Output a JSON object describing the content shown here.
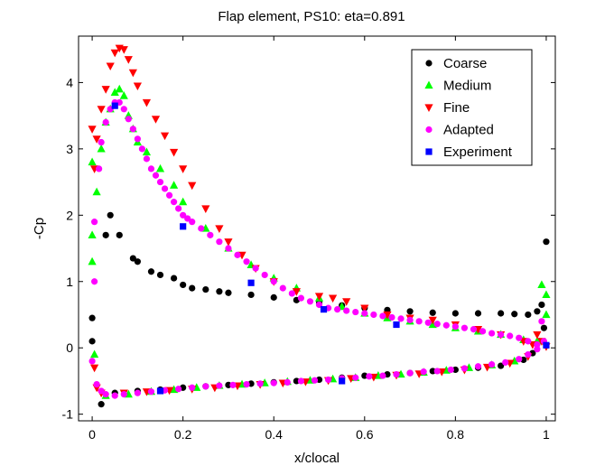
{
  "chart_data": {
    "type": "scatter",
    "title": "Flap element, PS10: eta=0.891",
    "xlabel": "x/clocal",
    "ylabel": "-Cp",
    "xlim": [
      -0.03,
      1.02
    ],
    "ylim": [
      -1.1,
      4.7
    ],
    "xticks": [
      0,
      0.2,
      0.4,
      0.6,
      0.8,
      1
    ],
    "yticks": [
      -1,
      0,
      1,
      2,
      3,
      4
    ],
    "grid": false,
    "legend_position": "top-right",
    "series": [
      {
        "name": "Coarse",
        "marker": "circle",
        "color": "#000000",
        "points": [
          [
            0.0,
            0.45
          ],
          [
            0.0,
            0.1
          ],
          [
            0.02,
            -0.85
          ],
          [
            0.03,
            1.7
          ],
          [
            0.04,
            2.0
          ],
          [
            0.06,
            1.7
          ],
          [
            0.09,
            1.35
          ],
          [
            0.1,
            1.3
          ],
          [
            0.13,
            1.15
          ],
          [
            0.15,
            1.1
          ],
          [
            0.18,
            1.05
          ],
          [
            0.2,
            0.95
          ],
          [
            0.22,
            0.9
          ],
          [
            0.25,
            0.88
          ],
          [
            0.28,
            0.85
          ],
          [
            0.3,
            0.83
          ],
          [
            0.35,
            0.8
          ],
          [
            0.4,
            0.76
          ],
          [
            0.45,
            0.72
          ],
          [
            0.5,
            0.68
          ],
          [
            0.55,
            0.64
          ],
          [
            0.6,
            0.6
          ],
          [
            0.65,
            0.57
          ],
          [
            0.7,
            0.55
          ],
          [
            0.75,
            0.53
          ],
          [
            0.8,
            0.52
          ],
          [
            0.85,
            0.52
          ],
          [
            0.9,
            0.52
          ],
          [
            0.93,
            0.51
          ],
          [
            0.96,
            0.5
          ],
          [
            0.98,
            0.55
          ],
          [
            0.99,
            0.65
          ],
          [
            1.0,
            1.6
          ],
          [
            0.995,
            0.3
          ],
          [
            0.985,
            0.1
          ],
          [
            0.05,
            -0.68
          ],
          [
            0.1,
            -0.65
          ],
          [
            0.15,
            -0.63
          ],
          [
            0.2,
            -0.6
          ],
          [
            0.25,
            -0.58
          ],
          [
            0.3,
            -0.56
          ],
          [
            0.35,
            -0.54
          ],
          [
            0.4,
            -0.52
          ],
          [
            0.45,
            -0.5
          ],
          [
            0.5,
            -0.48
          ],
          [
            0.55,
            -0.45
          ],
          [
            0.6,
            -0.42
          ],
          [
            0.65,
            -0.4
          ],
          [
            0.7,
            -0.38
          ],
          [
            0.75,
            -0.35
          ],
          [
            0.8,
            -0.33
          ],
          [
            0.85,
            -0.3
          ],
          [
            0.9,
            -0.27
          ],
          [
            0.95,
            -0.18
          ],
          [
            0.97,
            -0.08
          ]
        ]
      },
      {
        "name": "Medium",
        "marker": "triangle-up",
        "color": "#00ff00",
        "points": [
          [
            0.0,
            1.3
          ],
          [
            0.0,
            1.7
          ],
          [
            0.0,
            2.8
          ],
          [
            0.005,
            -0.1
          ],
          [
            0.01,
            2.35
          ],
          [
            0.02,
            3.0
          ],
          [
            0.03,
            3.4
          ],
          [
            0.04,
            3.6
          ],
          [
            0.05,
            3.85
          ],
          [
            0.06,
            3.9
          ],
          [
            0.07,
            3.8
          ],
          [
            0.08,
            3.5
          ],
          [
            0.09,
            3.3
          ],
          [
            0.1,
            3.1
          ],
          [
            0.12,
            2.95
          ],
          [
            0.15,
            2.7
          ],
          [
            0.18,
            2.45
          ],
          [
            0.2,
            2.2
          ],
          [
            0.25,
            1.8
          ],
          [
            0.3,
            1.5
          ],
          [
            0.35,
            1.25
          ],
          [
            0.4,
            1.05
          ],
          [
            0.45,
            0.9
          ],
          [
            0.5,
            0.75
          ],
          [
            0.55,
            0.62
          ],
          [
            0.6,
            0.52
          ],
          [
            0.65,
            0.45
          ],
          [
            0.7,
            0.4
          ],
          [
            0.75,
            0.35
          ],
          [
            0.8,
            0.3
          ],
          [
            0.85,
            0.25
          ],
          [
            0.9,
            0.2
          ],
          [
            0.95,
            0.12
          ],
          [
            0.98,
            0.1
          ],
          [
            0.99,
            0.95
          ],
          [
            1.0,
            0.8
          ],
          [
            1.0,
            0.5
          ],
          [
            0.03,
            -0.72
          ],
          [
            0.08,
            -0.7
          ],
          [
            0.13,
            -0.66
          ],
          [
            0.18,
            -0.63
          ],
          [
            0.23,
            -0.6
          ],
          [
            0.28,
            -0.57
          ],
          [
            0.33,
            -0.55
          ],
          [
            0.38,
            -0.53
          ],
          [
            0.43,
            -0.51
          ],
          [
            0.48,
            -0.49
          ],
          [
            0.53,
            -0.47
          ],
          [
            0.58,
            -0.45
          ],
          [
            0.63,
            -0.42
          ],
          [
            0.68,
            -0.4
          ],
          [
            0.73,
            -0.37
          ],
          [
            0.78,
            -0.34
          ],
          [
            0.83,
            -0.3
          ],
          [
            0.88,
            -0.26
          ],
          [
            0.93,
            -0.2
          ]
        ]
      },
      {
        "name": "Fine",
        "marker": "triangle-down",
        "color": "#ff0000",
        "points": [
          [
            0.0,
            3.3
          ],
          [
            0.005,
            2.7
          ],
          [
            0.005,
            -0.3
          ],
          [
            0.01,
            -0.6
          ],
          [
            0.01,
            3.15
          ],
          [
            0.02,
            3.6
          ],
          [
            0.03,
            3.9
          ],
          [
            0.04,
            4.25
          ],
          [
            0.05,
            4.45
          ],
          [
            0.06,
            4.52
          ],
          [
            0.07,
            4.5
          ],
          [
            0.08,
            4.35
          ],
          [
            0.09,
            4.15
          ],
          [
            0.1,
            3.95
          ],
          [
            0.12,
            3.7
          ],
          [
            0.14,
            3.45
          ],
          [
            0.16,
            3.2
          ],
          [
            0.18,
            2.95
          ],
          [
            0.2,
            2.7
          ],
          [
            0.22,
            2.45
          ],
          [
            0.25,
            2.1
          ],
          [
            0.28,
            1.8
          ],
          [
            0.3,
            1.6
          ],
          [
            0.33,
            1.4
          ],
          [
            0.36,
            1.2
          ],
          [
            0.4,
            1.0
          ],
          [
            0.45,
            0.85
          ],
          [
            0.5,
            0.78
          ],
          [
            0.53,
            0.75
          ],
          [
            0.56,
            0.7
          ],
          [
            0.6,
            0.6
          ],
          [
            0.65,
            0.5
          ],
          [
            0.7,
            0.45
          ],
          [
            0.75,
            0.42
          ],
          [
            0.8,
            0.35
          ],
          [
            0.85,
            0.28
          ],
          [
            0.9,
            0.2
          ],
          [
            0.95,
            0.1
          ],
          [
            0.97,
            0.05
          ],
          [
            0.98,
            0.2
          ],
          [
            0.99,
            0.1
          ],
          [
            1.0,
            0.02
          ],
          [
            0.02,
            -0.68
          ],
          [
            0.07,
            -0.68
          ],
          [
            0.12,
            -0.66
          ],
          [
            0.17,
            -0.64
          ],
          [
            0.22,
            -0.62
          ],
          [
            0.27,
            -0.6
          ],
          [
            0.32,
            -0.57
          ],
          [
            0.37,
            -0.55
          ],
          [
            0.42,
            -0.53
          ],
          [
            0.47,
            -0.51
          ],
          [
            0.52,
            -0.49
          ],
          [
            0.57,
            -0.46
          ],
          [
            0.62,
            -0.44
          ],
          [
            0.67,
            -0.41
          ],
          [
            0.72,
            -0.39
          ],
          [
            0.77,
            -0.36
          ],
          [
            0.82,
            -0.33
          ],
          [
            0.87,
            -0.29
          ],
          [
            0.92,
            -0.23
          ],
          [
            0.96,
            -0.13
          ]
        ]
      },
      {
        "name": "Adapted",
        "marker": "circle",
        "color": "#ff00ff",
        "points": [
          [
            0.0,
            -0.2
          ],
          [
            0.005,
            1.0
          ],
          [
            0.005,
            1.9
          ],
          [
            0.01,
            -0.55
          ],
          [
            0.015,
            2.7
          ],
          [
            0.02,
            3.1
          ],
          [
            0.03,
            3.4
          ],
          [
            0.04,
            3.6
          ],
          [
            0.05,
            3.7
          ],
          [
            0.06,
            3.7
          ],
          [
            0.07,
            3.6
          ],
          [
            0.08,
            3.45
          ],
          [
            0.09,
            3.3
          ],
          [
            0.1,
            3.15
          ],
          [
            0.11,
            3.0
          ],
          [
            0.12,
            2.85
          ],
          [
            0.13,
            2.7
          ],
          [
            0.14,
            2.6
          ],
          [
            0.15,
            2.5
          ],
          [
            0.16,
            2.4
          ],
          [
            0.17,
            2.3
          ],
          [
            0.18,
            2.2
          ],
          [
            0.19,
            2.1
          ],
          [
            0.2,
            2.0
          ],
          [
            0.21,
            1.95
          ],
          [
            0.22,
            1.9
          ],
          [
            0.24,
            1.8
          ],
          [
            0.26,
            1.7
          ],
          [
            0.28,
            1.6
          ],
          [
            0.3,
            1.5
          ],
          [
            0.32,
            1.4
          ],
          [
            0.34,
            1.3
          ],
          [
            0.36,
            1.2
          ],
          [
            0.38,
            1.1
          ],
          [
            0.4,
            1.0
          ],
          [
            0.42,
            0.9
          ],
          [
            0.44,
            0.82
          ],
          [
            0.46,
            0.75
          ],
          [
            0.48,
            0.7
          ],
          [
            0.5,
            0.65
          ],
          [
            0.52,
            0.6
          ],
          [
            0.54,
            0.58
          ],
          [
            0.56,
            0.56
          ],
          [
            0.58,
            0.54
          ],
          [
            0.6,
            0.52
          ],
          [
            0.62,
            0.5
          ],
          [
            0.64,
            0.48
          ],
          [
            0.66,
            0.46
          ],
          [
            0.68,
            0.44
          ],
          [
            0.7,
            0.42
          ],
          [
            0.72,
            0.4
          ],
          [
            0.74,
            0.38
          ],
          [
            0.76,
            0.36
          ],
          [
            0.78,
            0.34
          ],
          [
            0.8,
            0.32
          ],
          [
            0.82,
            0.3
          ],
          [
            0.84,
            0.28
          ],
          [
            0.86,
            0.25
          ],
          [
            0.88,
            0.22
          ],
          [
            0.9,
            0.2
          ],
          [
            0.92,
            0.18
          ],
          [
            0.94,
            0.15
          ],
          [
            0.96,
            0.1
          ],
          [
            0.98,
            0.05
          ],
          [
            0.99,
            0.4
          ],
          [
            0.995,
            0.1
          ],
          [
            0.02,
            -0.65
          ],
          [
            0.03,
            -0.7
          ],
          [
            0.05,
            -0.72
          ],
          [
            0.07,
            -0.7
          ],
          [
            0.1,
            -0.68
          ],
          [
            0.13,
            -0.66
          ],
          [
            0.16,
            -0.64
          ],
          [
            0.19,
            -0.62
          ],
          [
            0.22,
            -0.6
          ],
          [
            0.25,
            -0.58
          ],
          [
            0.28,
            -0.57
          ],
          [
            0.31,
            -0.56
          ],
          [
            0.34,
            -0.55
          ],
          [
            0.37,
            -0.54
          ],
          [
            0.4,
            -0.53
          ],
          [
            0.43,
            -0.52
          ],
          [
            0.46,
            -0.5
          ],
          [
            0.49,
            -0.49
          ],
          [
            0.52,
            -0.48
          ],
          [
            0.55,
            -0.46
          ],
          [
            0.58,
            -0.45
          ],
          [
            0.61,
            -0.43
          ],
          [
            0.64,
            -0.42
          ],
          [
            0.67,
            -0.4
          ],
          [
            0.7,
            -0.38
          ],
          [
            0.73,
            -0.36
          ],
          [
            0.76,
            -0.35
          ],
          [
            0.79,
            -0.33
          ],
          [
            0.82,
            -0.31
          ],
          [
            0.85,
            -0.28
          ],
          [
            0.88,
            -0.25
          ],
          [
            0.91,
            -0.22
          ],
          [
            0.94,
            -0.17
          ],
          [
            0.96,
            -0.1
          ],
          [
            0.98,
            -0.02
          ]
        ]
      },
      {
        "name": "Experiment",
        "marker": "square",
        "color": "#0000ff",
        "points": [
          [
            0.05,
            3.65
          ],
          [
            0.2,
            1.83
          ],
          [
            0.35,
            0.98
          ],
          [
            0.51,
            0.58
          ],
          [
            0.67,
            0.35
          ],
          [
            1.0,
            0.04
          ],
          [
            0.15,
            -0.65
          ],
          [
            0.55,
            -0.5
          ]
        ]
      }
    ]
  }
}
